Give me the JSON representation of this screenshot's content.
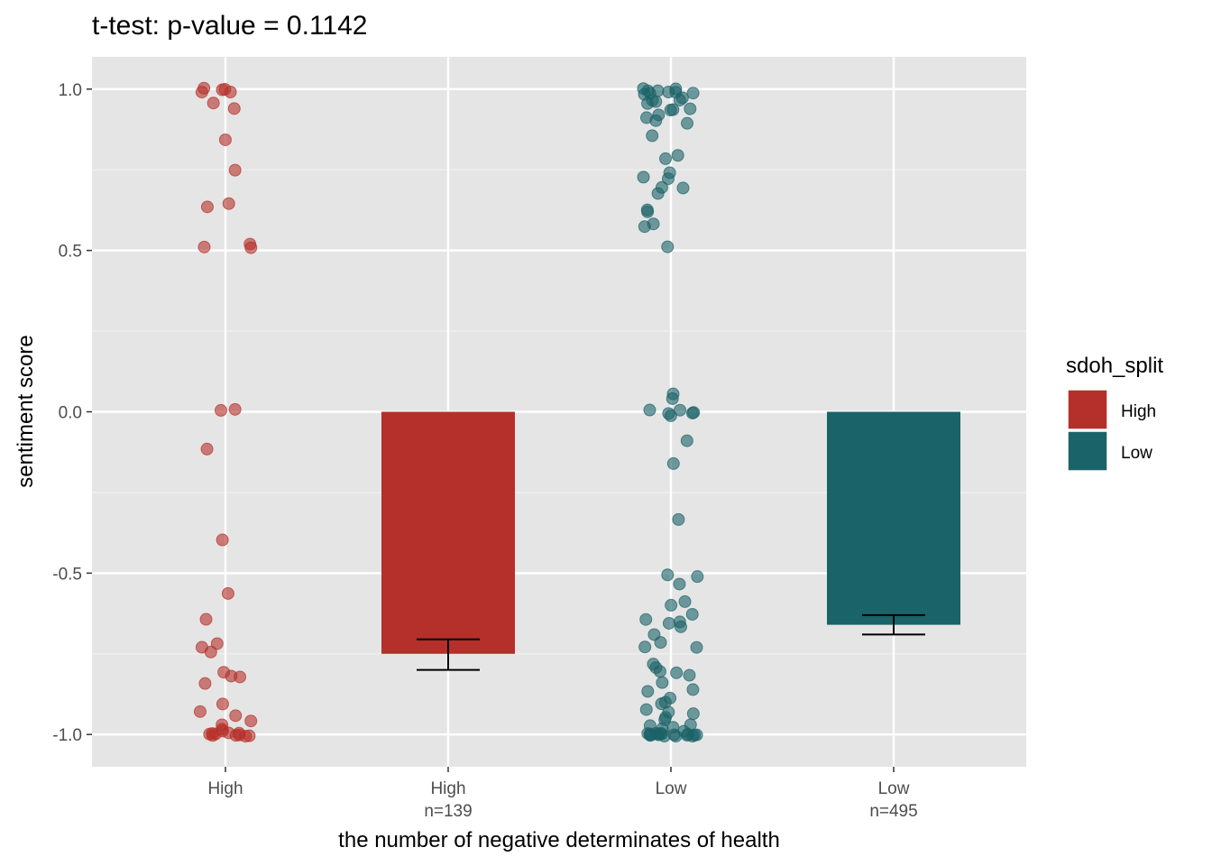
{
  "chart_data": {
    "type": "bar",
    "title": "t-test: p-value = 0.1142",
    "xlabel": "the number of negative determinates of health",
    "ylabel": "sentiment score",
    "ylim": [
      -1.1,
      1.1
    ],
    "yticks": [
      "-1.0",
      "-0.5",
      "0.0",
      "0.5",
      "1.0"
    ],
    "ytick_values": [
      -1.0,
      -0.5,
      0.0,
      0.5,
      1.0
    ],
    "categories": [
      {
        "label": "High",
        "sublabel": ""
      },
      {
        "label": "High",
        "sublabel": "n=139"
      },
      {
        "label": "Low",
        "sublabel": ""
      },
      {
        "label": "Low",
        "sublabel": "n=495"
      }
    ],
    "bars": [
      {
        "category_index": 1,
        "group": "High",
        "value": -0.75,
        "err_low": -0.8,
        "err_high": -0.705
      },
      {
        "category_index": 3,
        "group": "Low",
        "value": -0.66,
        "err_low": -0.69,
        "err_high": -0.63
      }
    ],
    "jitter_points": [
      {
        "category_index": 0,
        "group": "High",
        "values": [
          1.0,
          1.0,
          0.998,
          0.995,
          0.99,
          0.96,
          0.935,
          0.84,
          0.745,
          0.645,
          0.63,
          0.525,
          0.51,
          0.505,
          0.005,
          0.005,
          -0.11,
          -0.4,
          -0.565,
          -0.64,
          -0.72,
          -0.725,
          -0.74,
          -0.81,
          -0.82,
          -0.82,
          -0.845,
          -0.91,
          -0.93,
          -0.94,
          -0.96,
          -0.97,
          -0.98,
          -0.99,
          -1.0,
          -1.0,
          -1.0,
          -1.0,
          -1.0,
          -1.0,
          -1.0,
          -1.0,
          -1.0,
          -1.0
        ]
      },
      {
        "category_index": 2,
        "group": "Low",
        "values": [
          1.0,
          1.0,
          1.0,
          1.0,
          0.995,
          0.99,
          0.99,
          0.985,
          0.98,
          0.975,
          0.97,
          0.965,
          0.96,
          0.95,
          0.94,
          0.935,
          0.93,
          0.92,
          0.91,
          0.9,
          0.89,
          0.85,
          0.79,
          0.78,
          0.74,
          0.73,
          0.725,
          0.7,
          0.695,
          0.675,
          0.63,
          0.615,
          0.58,
          0.575,
          0.51,
          0.06,
          0.04,
          0.01,
          0.005,
          0.0,
          0.0,
          -0.005,
          -0.01,
          -0.085,
          -0.155,
          -0.33,
          -0.51,
          -0.51,
          -0.535,
          -0.585,
          -0.6,
          -0.625,
          -0.645,
          -0.65,
          -0.655,
          -0.67,
          -0.69,
          -0.72,
          -0.73,
          -0.73,
          -0.78,
          -0.79,
          -0.8,
          -0.81,
          -0.82,
          -0.84,
          -0.86,
          -0.87,
          -0.89,
          -0.9,
          -0.91,
          -0.92,
          -0.93,
          -0.94,
          -0.95,
          -0.96,
          -0.97,
          -0.975,
          -0.98,
          -0.985,
          -0.99,
          -0.995,
          -1.0,
          -1.0,
          -1.0,
          -1.0,
          -1.0,
          -1.0,
          -1.0,
          -1.0,
          -1.0,
          -1.0,
          -1.0,
          -1.0,
          -1.0,
          -1.0,
          -1.0,
          -1.0
        ]
      }
    ],
    "legend": {
      "title": "sdoh_split",
      "placement": "right",
      "entries": [
        {
          "label": "High",
          "color": "#B5302A"
        },
        {
          "label": "Low",
          "color": "#1A6368"
        }
      ]
    },
    "grid": true,
    "panel_background": "#E5E5E5"
  }
}
